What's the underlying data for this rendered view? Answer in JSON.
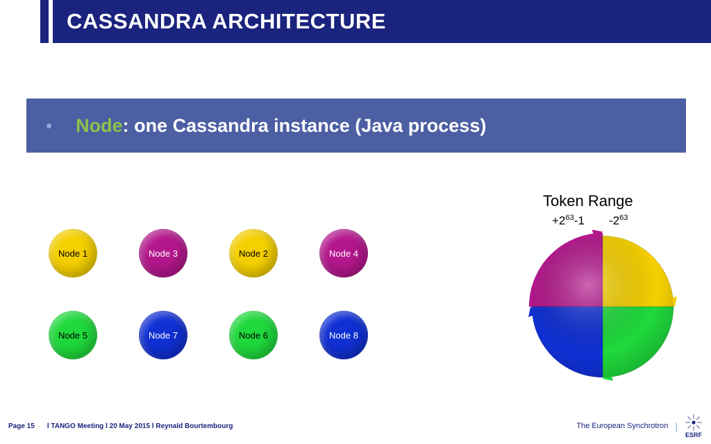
{
  "title": "CASSANDRA ARCHITECTURE",
  "bullet": {
    "highlight": "Node",
    "rest": ": one Cassandra instance (Java process)"
  },
  "nodes": {
    "row1": [
      {
        "label": "Node 1",
        "bg": "#f5d000",
        "text": "#000000"
      },
      {
        "label": "Node 3",
        "bg": "#b4178c",
        "text": "#ffffff"
      },
      {
        "label": "Node 2",
        "bg": "#f5d000",
        "text": "#000000"
      },
      {
        "label": "Node 4",
        "bg": "#b4178c",
        "text": "#ffffff"
      }
    ],
    "row2": [
      {
        "label": "Node 5",
        "bg": "#1fd93c",
        "text": "#000000"
      },
      {
        "label": "Node 7",
        "bg": "#1030d4",
        "text": "#ffffff"
      },
      {
        "label": "Node 6",
        "bg": "#1fd93c",
        "text": "#000000"
      },
      {
        "label": "Node 8",
        "bg": "#1030d4",
        "text": "#ffffff"
      }
    ]
  },
  "token": {
    "title": "Token Range",
    "plus_base": "+2",
    "plus_exp": "63",
    "plus_tail": "-1",
    "minus_base": "-2",
    "minus_exp": "63",
    "slices": [
      {
        "color": "#b4178c",
        "start": 180,
        "end": 270
      },
      {
        "color": "#f5d000",
        "start": 270,
        "end": 360
      },
      {
        "color": "#1fd93c",
        "start": 0,
        "end": 90
      },
      {
        "color": "#1030d4",
        "start": 90,
        "end": 180
      }
    ]
  },
  "footer": {
    "page": "Page 15",
    "meta": "l TANGO Meeting l 20 May 2015 l Reynald Bourtembourg",
    "org": "The European Synchrotron",
    "logo": "ESRF"
  },
  "colors": {
    "title_bg": "#1a237e",
    "bullet_bg": "#4c5fa3",
    "highlight": "#8BC34A"
  }
}
